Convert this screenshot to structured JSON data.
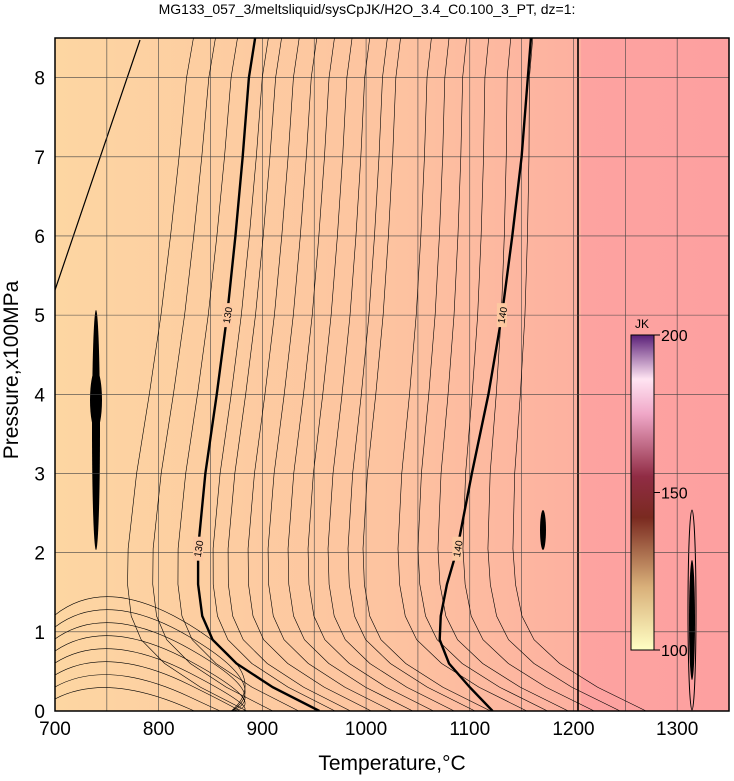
{
  "chart_data": {
    "type": "contour",
    "title": "MG133_057_3/meltsliquid/sysCpJK/H2O_3.4_C0.100_3_PT, dz=1:",
    "x_label": "Temperature,°C",
    "y_label": "Pressure,x100MPa",
    "xlim": [
      700,
      1350
    ],
    "ylim": [
      0,
      8.5
    ],
    "xticks": [
      700,
      800,
      900,
      1000,
      1100,
      1200,
      1300
    ],
    "yticks": [
      0,
      1,
      2,
      3,
      4,
      5,
      6,
      7,
      8
    ],
    "grid": true,
    "contours": [
      {
        "level": 130,
        "label": "130",
        "T": [
          955,
          910,
          875,
          852,
          842,
          838,
          838,
          845,
          856,
          866,
          874,
          881,
          887,
          893
        ],
        "P": [
          0,
          0.3,
          0.6,
          0.9,
          1.2,
          1.6,
          2.05,
          3,
          4,
          5,
          6,
          7,
          8,
          8.5
        ]
      },
      {
        "level": 140,
        "label": "140",
        "T": [
          1122,
          1100,
          1080,
          1071,
          1072,
          1078,
          1088,
          1102,
          1118,
          1131,
          1141,
          1150,
          1156,
          1159
        ],
        "P": [
          0,
          0.3,
          0.6,
          0.9,
          1.2,
          1.6,
          2.05,
          3,
          4,
          5,
          6,
          7,
          8,
          8.5
        ]
      }
    ],
    "colorbar": {
      "label": "JK",
      "lim": [
        100,
        200
      ],
      "ticks": [
        100,
        150,
        200
      ]
    }
  }
}
